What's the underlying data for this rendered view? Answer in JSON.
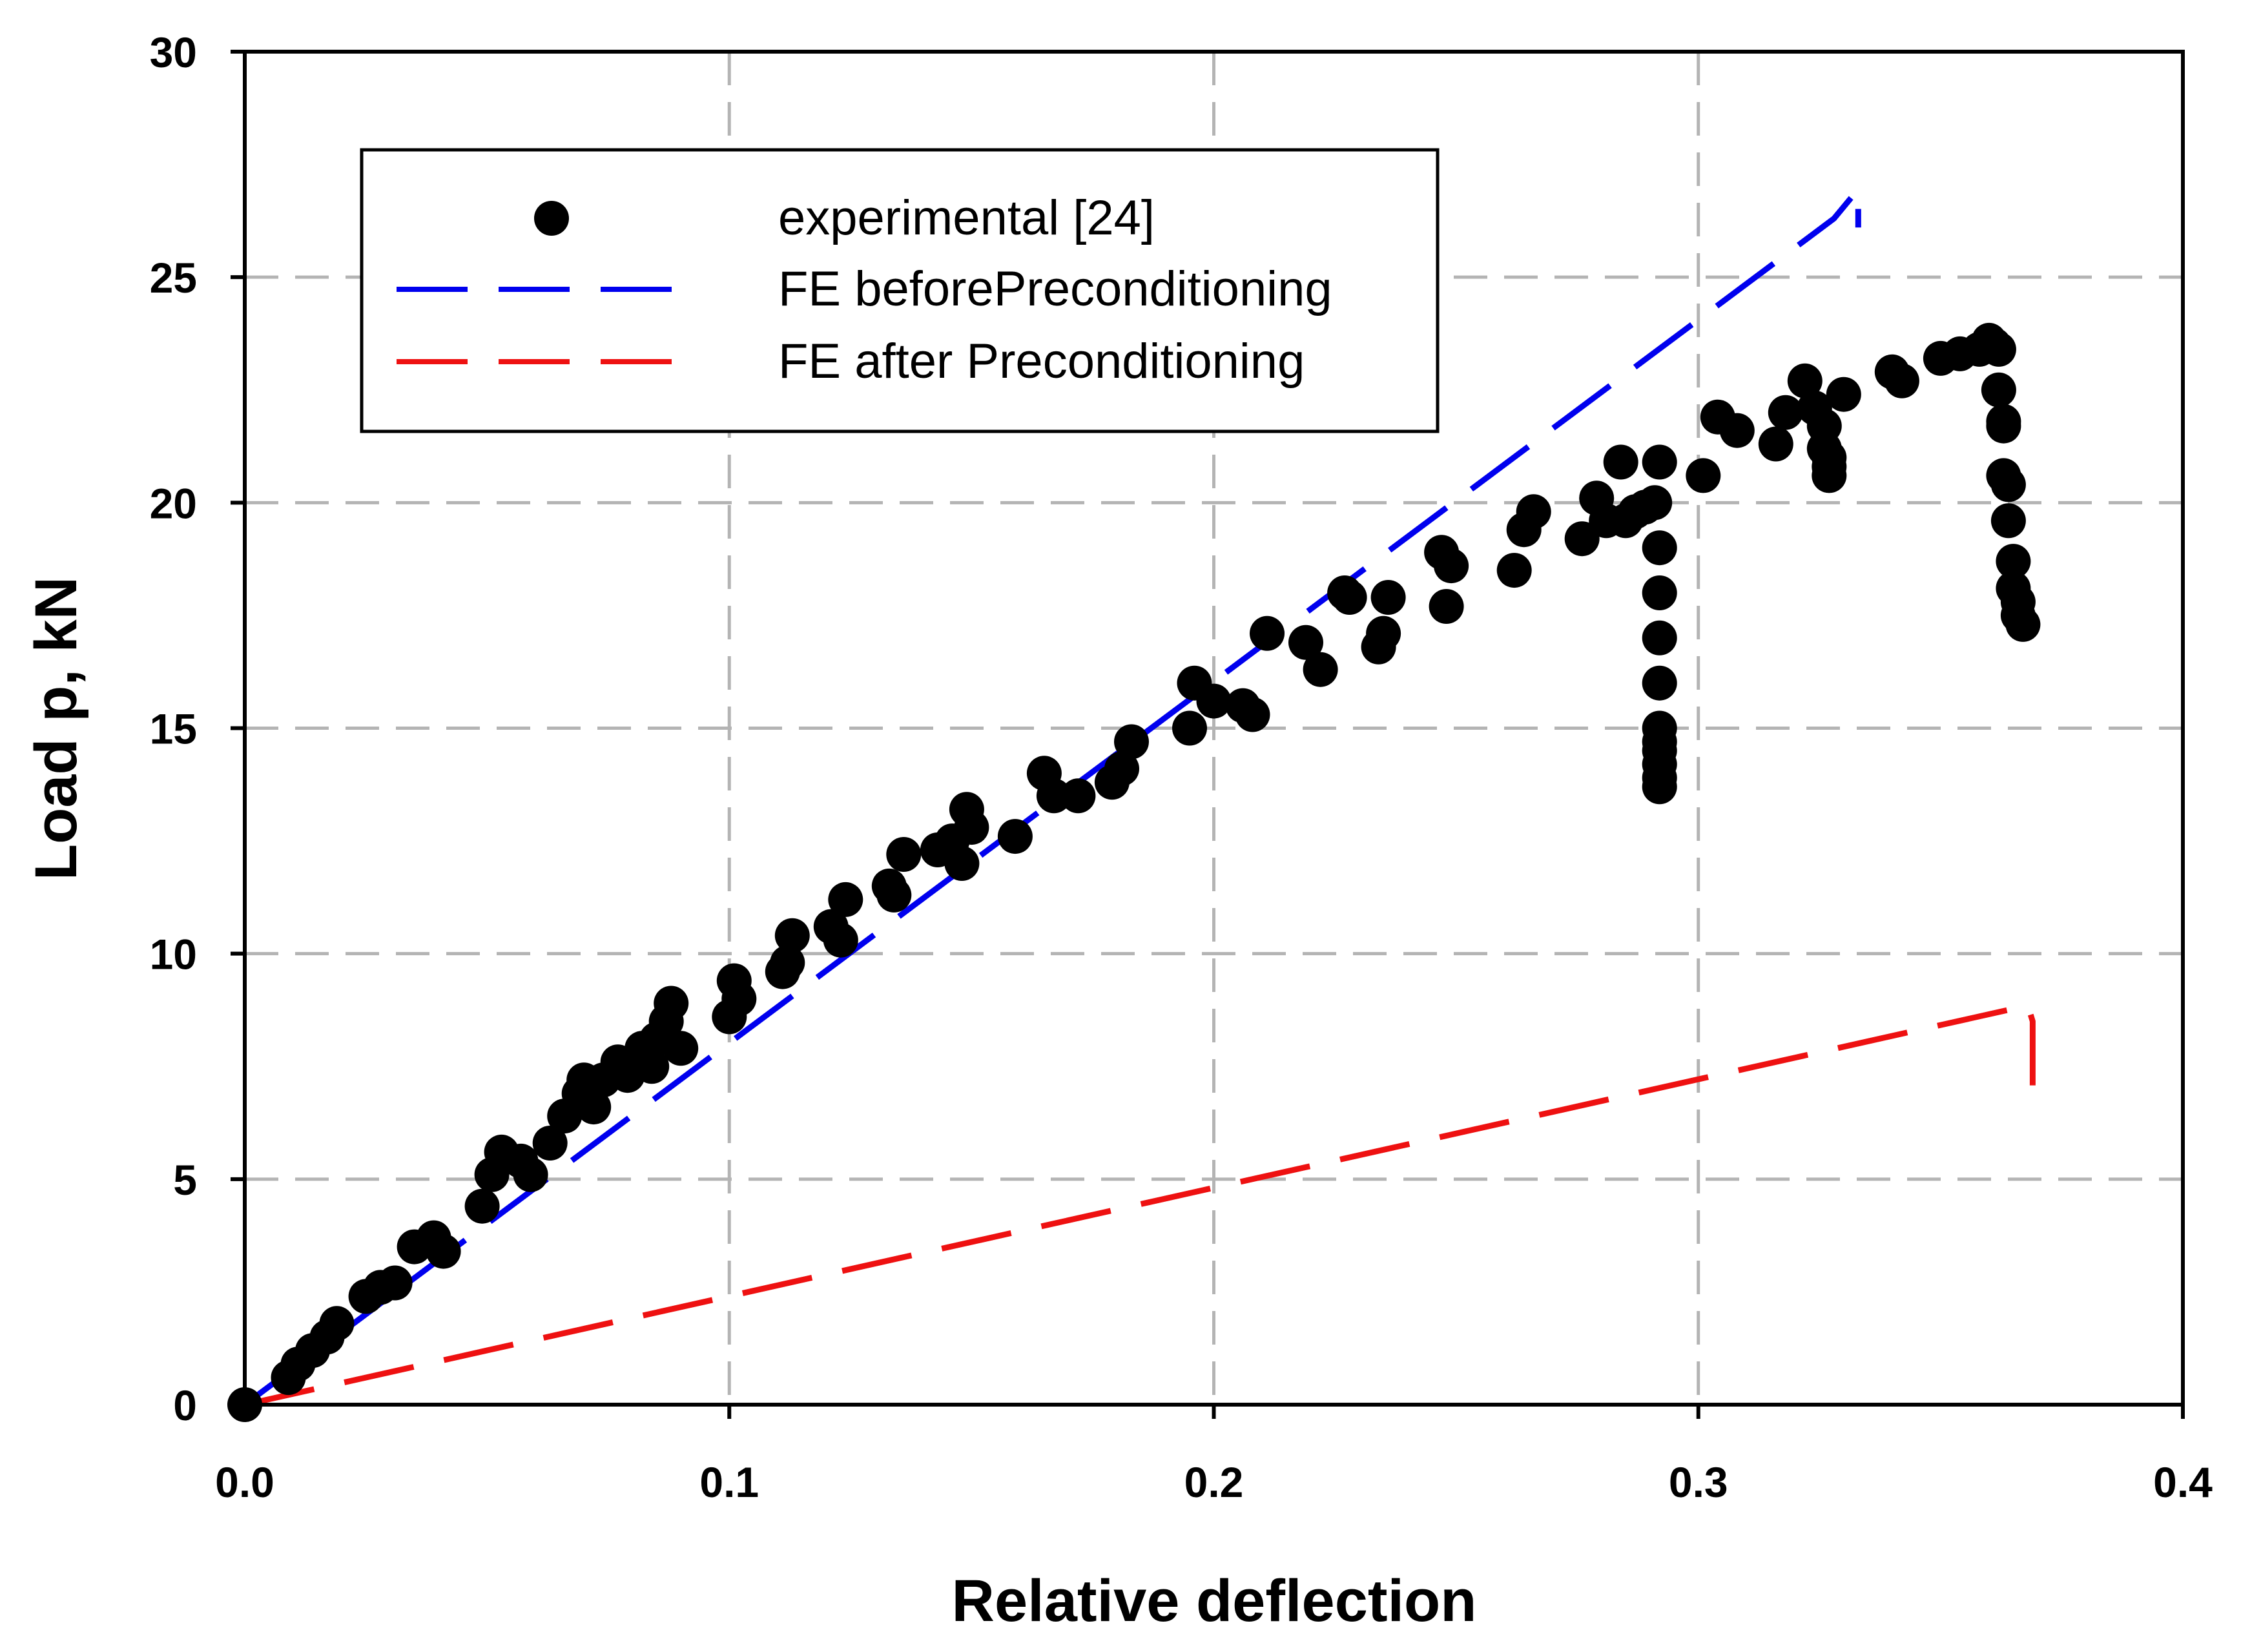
{
  "chart_data": {
    "type": "scatter",
    "title": "",
    "xlabel": "Relative deflection",
    "ylabel": "Load p, kN",
    "xlim": [
      0,
      0.4
    ],
    "ylim": [
      0,
      30
    ],
    "x_ticks": [
      0,
      0.1,
      0.2,
      0.3,
      0.4
    ],
    "x_tick_labels": [
      "0.0",
      "0.1",
      "0.2",
      "0.3",
      "0.4"
    ],
    "y_ticks": [
      0,
      5,
      10,
      15,
      20,
      25,
      30
    ],
    "y_tick_labels": [
      "0",
      "5",
      "10",
      "15",
      "20",
      "25",
      "30"
    ],
    "grid": true,
    "legend_position": "top-left",
    "series": [
      {
        "name": "experimental [24]",
        "kind": "scatter",
        "color": "#000000",
        "x": [
          0,
          0.009,
          0.011,
          0.014,
          0.017,
          0.019,
          0.025,
          0.028,
          0.031,
          0.035,
          0.039,
          0.041,
          0.049,
          0.051,
          0.053,
          0.057,
          0.059,
          0.063,
          0.066,
          0.069,
          0.07,
          0.072,
          0.074,
          0.077,
          0.079,
          0.082,
          0.084,
          0.085,
          0.087,
          0.088,
          0.09,
          0.1,
          0.101,
          0.102,
          0.111,
          0.112,
          0.113,
          0.121,
          0.123,
          0.124,
          0.133,
          0.134,
          0.136,
          0.143,
          0.146,
          0.148,
          0.149,
          0.15,
          0.159,
          0.165,
          0.167,
          0.172,
          0.179,
          0.181,
          0.183,
          0.195,
          0.196,
          0.2,
          0.206,
          0.208,
          0.211,
          0.219,
          0.222,
          0.227,
          0.228,
          0.234,
          0.235,
          0.236,
          0.247,
          0.248,
          0.249,
          0.262,
          0.264,
          0.266,
          0.276,
          0.279,
          0.281,
          0.284,
          0.285,
          0.287,
          0.289,
          0.291,
          0.292,
          0.292,
          0.292,
          0.292,
          0.292,
          0.292,
          0.292,
          0.292,
          0.292,
          0.292,
          0.292,
          0.301,
          0.304,
          0.308,
          0.316,
          0.318,
          0.322,
          0.324,
          0.326,
          0.326,
          0.327,
          0.327,
          0.327,
          0.33,
          0.34,
          0.342,
          0.35,
          0.354,
          0.358,
          0.36,
          0.361,
          0.362,
          0.362,
          0.363,
          0.363,
          0.363,
          0.364,
          0.364,
          0.365,
          0.365,
          0.366,
          0.366,
          0.367
        ],
        "y": [
          0,
          0.6,
          0.9,
          1.2,
          1.5,
          1.8,
          2.4,
          2.6,
          2.7,
          3.5,
          3.7,
          3.4,
          4.4,
          5.1,
          5.6,
          5.4,
          5.1,
          5.8,
          6.4,
          6.9,
          7.2,
          6.6,
          7.2,
          7.6,
          7.3,
          7.9,
          7.5,
          8.1,
          8.5,
          8.9,
          7.9,
          8.6,
          9.4,
          9,
          9.6,
          9.8,
          10.4,
          10.6,
          10.3,
          11.2,
          11.5,
          11.3,
          12.2,
          12.3,
          12.5,
          12,
          13.2,
          12.8,
          12.6,
          14,
          13.5,
          13.5,
          13.8,
          14.1,
          14.7,
          15,
          16,
          15.6,
          15.5,
          15.3,
          17.1,
          16.9,
          16.3,
          18,
          17.9,
          16.8,
          17.1,
          17.9,
          18.9,
          17.7,
          18.6,
          18.5,
          19.4,
          19.8,
          19.2,
          20.1,
          19.6,
          20.9,
          19.6,
          19.8,
          19.9,
          20,
          20.9,
          19,
          18,
          17,
          16,
          15,
          14.7,
          14.5,
          14.2,
          13.9,
          13.7,
          20.6,
          21.9,
          21.6,
          21.3,
          22,
          22.7,
          22.1,
          21.7,
          21.2,
          20.8,
          21,
          20.6,
          22.4,
          22.9,
          22.7,
          23.2,
          23.3,
          23.4,
          23.6,
          23.5,
          23.4,
          22.5,
          21.8,
          21.7,
          20.6,
          20.4,
          19.6,
          18.7,
          18.1,
          17.8,
          17.5,
          17.3
        ]
      },
      {
        "name": "FE beforePreconditioning",
        "kind": "line",
        "color": "#0000ee",
        "x": [
          0,
          0.328,
          0.333,
          0.333
        ],
        "y": [
          0,
          26.3,
          26.95,
          26.1
        ]
      },
      {
        "name": "FE after Preconditioning",
        "kind": "line",
        "color": "#ee1111",
        "x": [
          0,
          0.368,
          0.369,
          0.369
        ],
        "y": [
          0,
          8.85,
          8.5,
          6.8
        ]
      }
    ]
  }
}
